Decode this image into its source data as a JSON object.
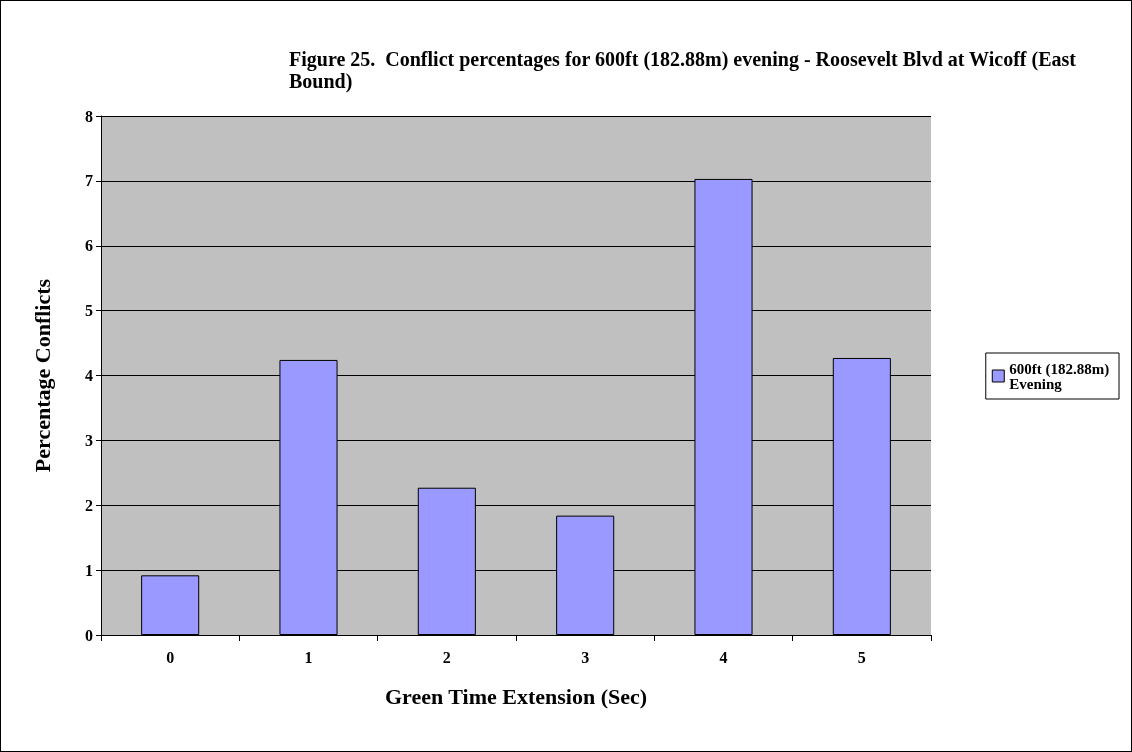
{
  "chart_data": {
    "type": "bar",
    "title": "Figure 25.  Conflict percentages for 600ft (182.88m) evening - Roosevelt Blvd at Wicoff (East Bound)",
    "xlabel": "Green Time Extension (Sec)",
    "ylabel": "Percentage Conflicts",
    "categories": [
      "0",
      "1",
      "2",
      "3",
      "4",
      "5"
    ],
    "series": [
      {
        "name": "600ft (182.88m) Evening",
        "color": "#9999ff",
        "values": [
          0.92,
          4.24,
          2.27,
          1.84,
          7.03,
          4.27
        ]
      }
    ],
    "ylim": [
      0,
      8
    ],
    "yticks": [
      0,
      1,
      2,
      3,
      4,
      5,
      6,
      7,
      8
    ],
    "grid": "y",
    "legend": "right"
  }
}
